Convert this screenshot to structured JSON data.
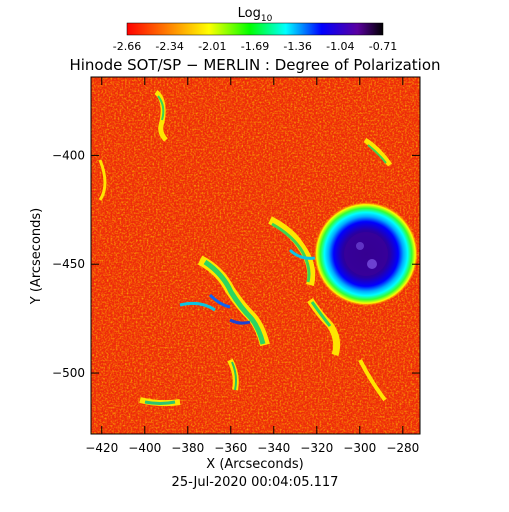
{
  "colorbar": {
    "label": "Log",
    "label_sub": "10",
    "ticks": [
      "-2.66",
      "-2.34",
      "-2.01",
      "-1.69",
      "-1.36",
      "-1.04",
      "-0.71"
    ],
    "colors": [
      "#ff0000",
      "#ff7f00",
      "#ffff00",
      "#00ff00",
      "#00ffff",
      "#0000ff",
      "#5a00a0",
      "#000000"
    ]
  },
  "title": "Hinode SOT/SP − MERLIN : Degree of Polarization",
  "x_axis": {
    "label": "X (Arcseconds)",
    "ticks": [
      "-420",
      "-400",
      "-380",
      "-360",
      "-340",
      "-320",
      "-300",
      "-280"
    ],
    "range": [
      -425,
      -272
    ]
  },
  "y_axis": {
    "label": "Y (Arcseconds)",
    "ticks": [
      "-400",
      "-450",
      "-500"
    ],
    "range": [
      -528,
      -364
    ]
  },
  "sunspot": {
    "x": -300,
    "y": -450,
    "label": ""
  },
  "timestamp": "25-Jul-2020 00:04:05.117"
}
